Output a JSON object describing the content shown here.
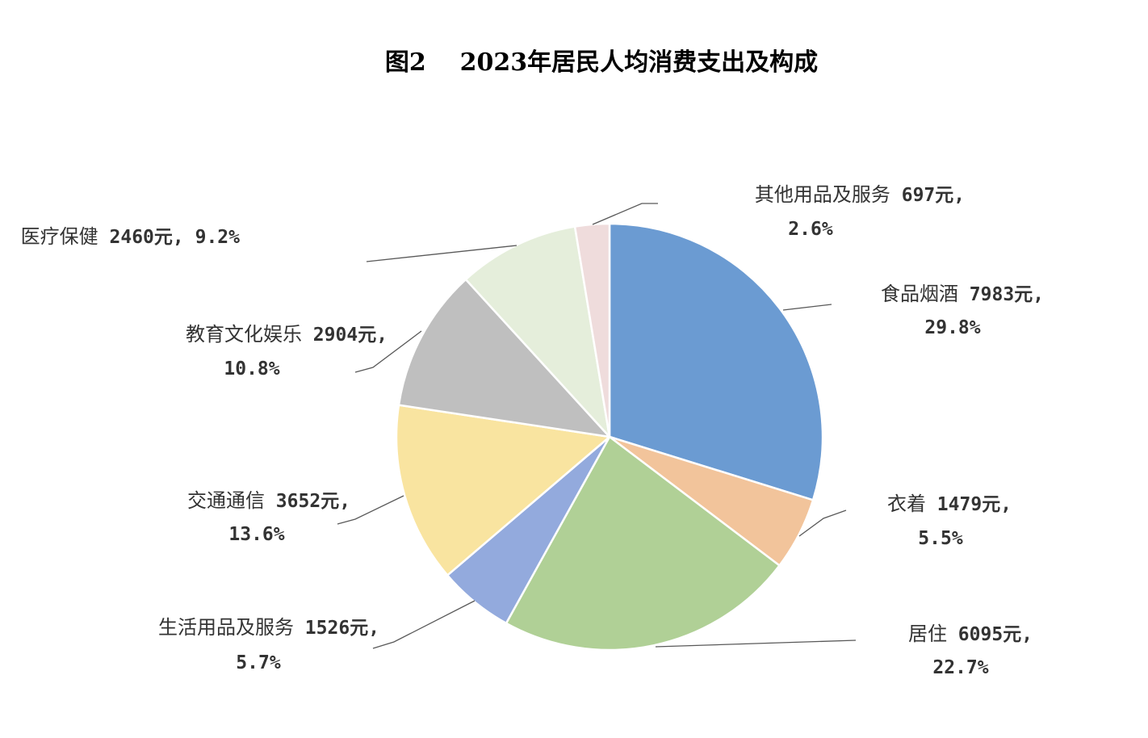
{
  "title": "图2    2023年居民人均消费支出及构成",
  "chart_data": {
    "type": "pie",
    "title": "图2    2023年居民人均消费支出及构成",
    "unit": "元",
    "slices": [
      {
        "name": "食品烟酒",
        "value": 7983,
        "percent_label": "29.8%",
        "color": "#6b9bd2"
      },
      {
        "name": "衣着",
        "value": 1479,
        "percent_label": "5.5%",
        "color": "#f2c49b"
      },
      {
        "name": "居住",
        "value": 6095,
        "percent_label": "22.7%",
        "color": "#b0d096"
      },
      {
        "name": "生活用品及服务",
        "value": 1526,
        "percent_label": "5.7%",
        "color": "#93aadd"
      },
      {
        "name": "交通通信",
        "value": 3652,
        "percent_label": "13.6%",
        "color": "#f9e4a0"
      },
      {
        "name": "教育文化娱乐",
        "value": 2904,
        "percent_label": "10.8%",
        "color": "#bfbfbf"
      },
      {
        "name": "医疗保健",
        "value": 2460,
        "percent_label": "9.2%",
        "color": "#e5eedb"
      },
      {
        "name": "其他用品及服务",
        "value": 697,
        "percent_label": "2.6%",
        "color": "#efdcdc"
      }
    ]
  }
}
